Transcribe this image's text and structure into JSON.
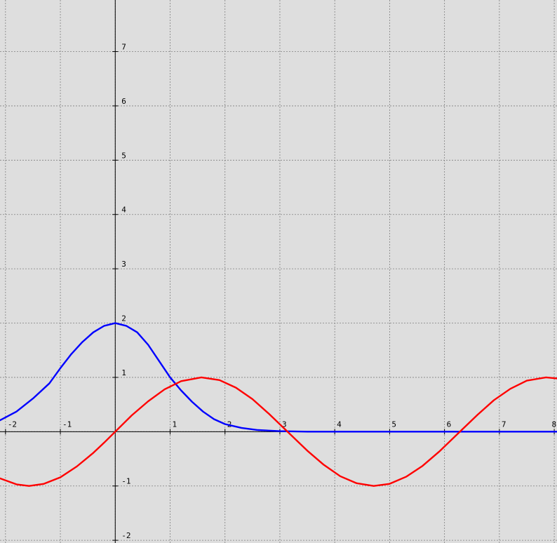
{
  "chart_data": {
    "type": "line",
    "title": "",
    "xlabel": "",
    "ylabel": "",
    "xlim": [
      -2.1,
      8.05
    ],
    "ylim": [
      -2.05,
      7.95
    ],
    "grid": true,
    "x_ticks": [
      -2,
      -1,
      1,
      2,
      3,
      4,
      5,
      6,
      7,
      8
    ],
    "y_ticks": [
      -2,
      -1,
      1,
      2,
      3,
      4,
      5,
      6,
      7
    ],
    "x_tick_labels": [
      "-2",
      "-1",
      "1",
      "2",
      "3",
      "4",
      "5",
      "6",
      "7",
      "8"
    ],
    "y_tick_labels": [
      "-2",
      "-1",
      "1",
      "2",
      "3",
      "4",
      "5",
      "6",
      "7"
    ],
    "series": [
      {
        "color": "#0000ff",
        "points": [
          [
            -2.1,
            0.21
          ],
          [
            -1.8,
            0.37
          ],
          [
            -1.5,
            0.61
          ],
          [
            -1.2,
            0.89
          ],
          [
            -1.0,
            1.17
          ],
          [
            -0.8,
            1.43
          ],
          [
            -0.6,
            1.65
          ],
          [
            -0.4,
            1.83
          ],
          [
            -0.2,
            1.95
          ],
          [
            0.0,
            2.0
          ],
          [
            0.2,
            1.95
          ],
          [
            0.4,
            1.83
          ],
          [
            0.6,
            1.6
          ],
          [
            0.8,
            1.3
          ],
          [
            1.0,
            1.0
          ],
          [
            1.2,
            0.76
          ],
          [
            1.4,
            0.55
          ],
          [
            1.6,
            0.37
          ],
          [
            1.8,
            0.23
          ],
          [
            2.0,
            0.14
          ],
          [
            2.3,
            0.07
          ],
          [
            2.6,
            0.03
          ],
          [
            3.0,
            0.01
          ],
          [
            3.5,
            0.0
          ],
          [
            4.0,
            0.0
          ],
          [
            5.0,
            0.0
          ],
          [
            6.0,
            0.0
          ],
          [
            7.0,
            0.0
          ],
          [
            8.05,
            0.0
          ]
        ]
      },
      {
        "color": "#ff0000",
        "points": [
          [
            -2.1,
            -0.86
          ],
          [
            -1.8,
            -0.97
          ],
          [
            -1.57,
            -1.0
          ],
          [
            -1.3,
            -0.96
          ],
          [
            -1.0,
            -0.84
          ],
          [
            -0.7,
            -0.64
          ],
          [
            -0.4,
            -0.39
          ],
          [
            -0.2,
            -0.2
          ],
          [
            0.0,
            0.0
          ],
          [
            0.3,
            0.3
          ],
          [
            0.6,
            0.56
          ],
          [
            0.9,
            0.78
          ],
          [
            1.2,
            0.93
          ],
          [
            1.57,
            1.0
          ],
          [
            1.9,
            0.95
          ],
          [
            2.2,
            0.81
          ],
          [
            2.5,
            0.6
          ],
          [
            2.8,
            0.33
          ],
          [
            3.14,
            0.0
          ],
          [
            3.5,
            -0.35
          ],
          [
            3.8,
            -0.61
          ],
          [
            4.1,
            -0.82
          ],
          [
            4.4,
            -0.95
          ],
          [
            4.71,
            -1.0
          ],
          [
            5.0,
            -0.96
          ],
          [
            5.3,
            -0.83
          ],
          [
            5.6,
            -0.63
          ],
          [
            5.9,
            -0.37
          ],
          [
            6.28,
            0.0
          ],
          [
            6.6,
            0.31
          ],
          [
            6.9,
            0.58
          ],
          [
            7.2,
            0.79
          ],
          [
            7.5,
            0.94
          ],
          [
            7.85,
            1.0
          ],
          [
            8.05,
            0.98
          ]
        ]
      }
    ]
  }
}
